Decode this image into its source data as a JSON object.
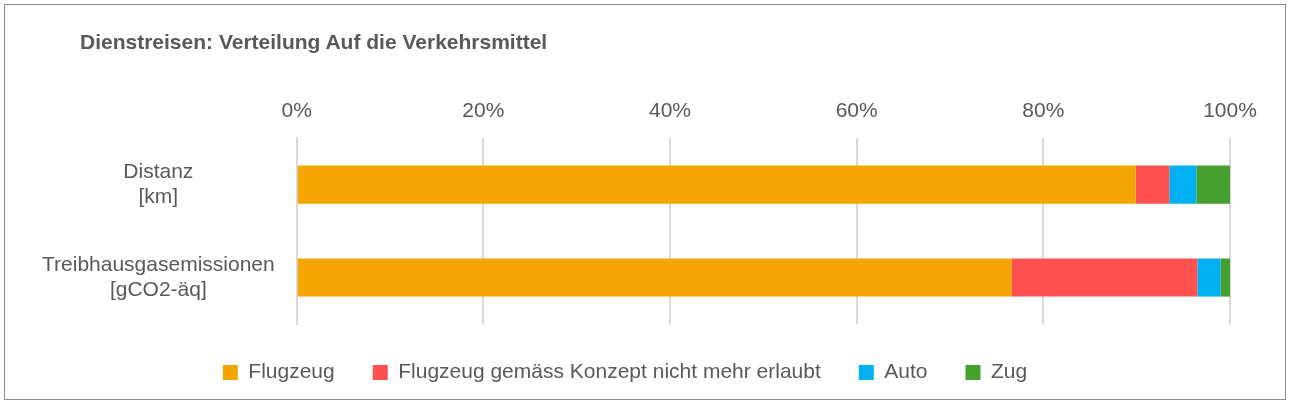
{
  "chart_data": {
    "type": "bar",
    "orientation": "horizontal",
    "stacked": true,
    "title": "Dienstreisen: Verteilung Auf die Verkehrsmittel",
    "categories": [
      "Distanz [km]",
      "Treibhausgasemissionen [gCO2-äq]"
    ],
    "series": [
      {
        "name": "Flugzeug",
        "color": "#f5a500",
        "values": [
          89.9,
          76.6
        ]
      },
      {
        "name": "Flugzeug gemäss Konzept nicht mehr erlaubt",
        "color": "#ff5050",
        "values": [
          3.6,
          19.9
        ]
      },
      {
        "name": "Auto",
        "color": "#00b0f0",
        "values": [
          2.9,
          2.5
        ]
      },
      {
        "name": "Zug",
        "color": "#46a02e",
        "values": [
          3.6,
          1.0
        ]
      }
    ],
    "xlim": [
      0,
      100
    ],
    "xticks": [
      {
        "value": 0,
        "label": "0%"
      },
      {
        "value": 20,
        "label": "20%"
      },
      {
        "value": 40,
        "label": "40%"
      },
      {
        "value": 60,
        "label": "60%"
      },
      {
        "value": 80,
        "label": "80%"
      },
      {
        "value": 100,
        "label": "100%"
      }
    ],
    "grid": "x",
    "legend": "bottom"
  }
}
